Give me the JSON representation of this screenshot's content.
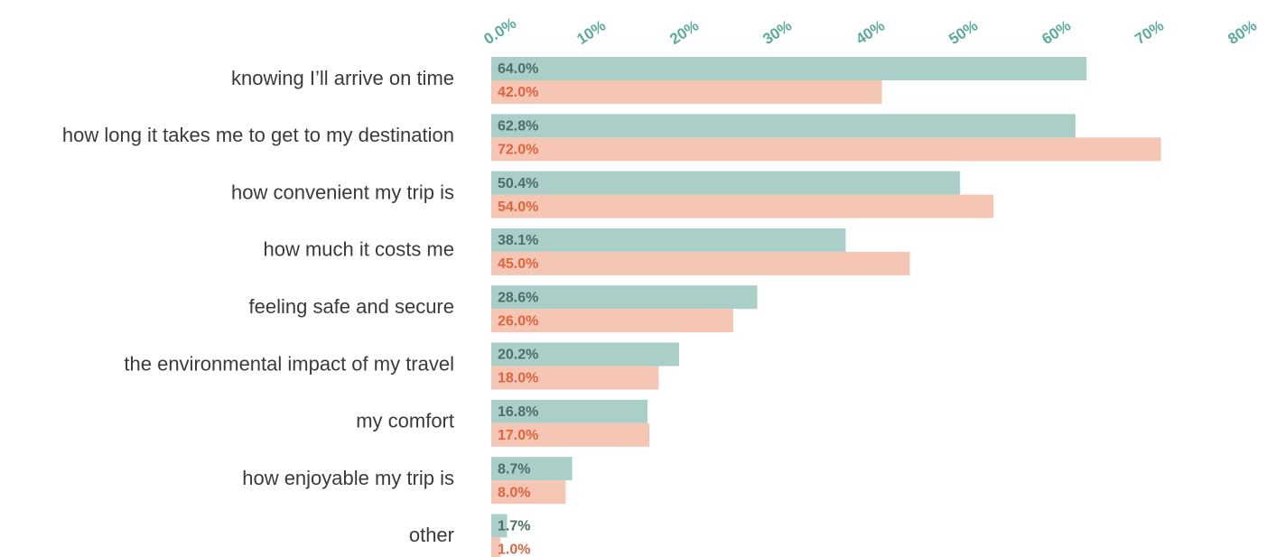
{
  "chart_data": {
    "type": "bar",
    "orientation": "horizontal",
    "categories": [
      "knowing I’ll arrive on time",
      "how long it takes me to get to my destination",
      "how convenient my trip is",
      "how much it costs me",
      "feeling safe and secure",
      "the environmental impact of my travel",
      "my comfort",
      "how enjoyable my trip is",
      "other"
    ],
    "series": [
      {
        "color": "#a9cfc8",
        "label_color": "#4a6e6a",
        "values": [
          64.0,
          62.8,
          50.4,
          38.1,
          28.6,
          20.2,
          16.8,
          8.7,
          1.7
        ],
        "value_labels": [
          "64.0%",
          "62.8%",
          "50.4%",
          "38.1%",
          "28.6%",
          "20.2%",
          "16.8%",
          "8.7%",
          "1.7%"
        ]
      },
      {
        "color": "#f4c6b3",
        "label_color": "#e0643f",
        "values": [
          42.0,
          72.0,
          54.0,
          45.0,
          26.0,
          18.0,
          17.0,
          8.0,
          1.0
        ],
        "value_labels": [
          "42.0%",
          "72.0%",
          "54.0%",
          "45.0%",
          "26.0%",
          "18.0%",
          "17.0%",
          "8.0%",
          "1.0%"
        ]
      }
    ],
    "xlim": [
      0,
      80
    ],
    "xticks": [
      {
        "value": 0,
        "label": "0.0%"
      },
      {
        "value": 10,
        "label": "10%"
      },
      {
        "value": 20,
        "label": "20%"
      },
      {
        "value": 30,
        "label": "30%"
      },
      {
        "value": 40,
        "label": "40%"
      },
      {
        "value": 50,
        "label": "50%"
      },
      {
        "value": 60,
        "label": "60%"
      },
      {
        "value": 70,
        "label": "70%"
      },
      {
        "value": 80,
        "label": "80%"
      }
    ],
    "tick_color": "#5aab9e",
    "grid": false
  }
}
